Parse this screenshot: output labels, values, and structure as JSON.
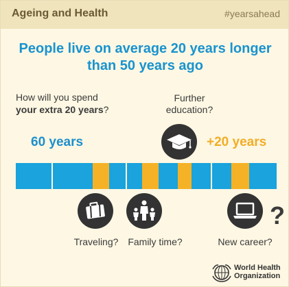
{
  "header": {
    "title": "Ageing and Health",
    "hashtag": "#yearsahead"
  },
  "headline": {
    "line1": "People live on average 20 years longer",
    "line2": "than 50 years ago"
  },
  "question": {
    "line1": "How will you spend",
    "line2_bold": "your extra 20 years",
    "line2_tail": "?"
  },
  "top_option": {
    "line1": "Further",
    "line2": "education?"
  },
  "timeline": {
    "left_label": "60 years",
    "right_label": "+20 years"
  },
  "options": {
    "traveling": "Traveling?",
    "family": "Family time?",
    "career": "New career?"
  },
  "question_mark": "?",
  "logo": {
    "line1": "World Health",
    "line2": "Organization"
  },
  "colors": {
    "header_bg": "#efe4bb",
    "card_bg": "#fdf7e3",
    "blue": "#1aa3dd",
    "orange": "#f5b226",
    "dark": "#333333"
  },
  "icons": [
    "graduation-cap-icon",
    "luggage-icon",
    "family-icon",
    "laptop-icon",
    "who-emblem-icon"
  ]
}
